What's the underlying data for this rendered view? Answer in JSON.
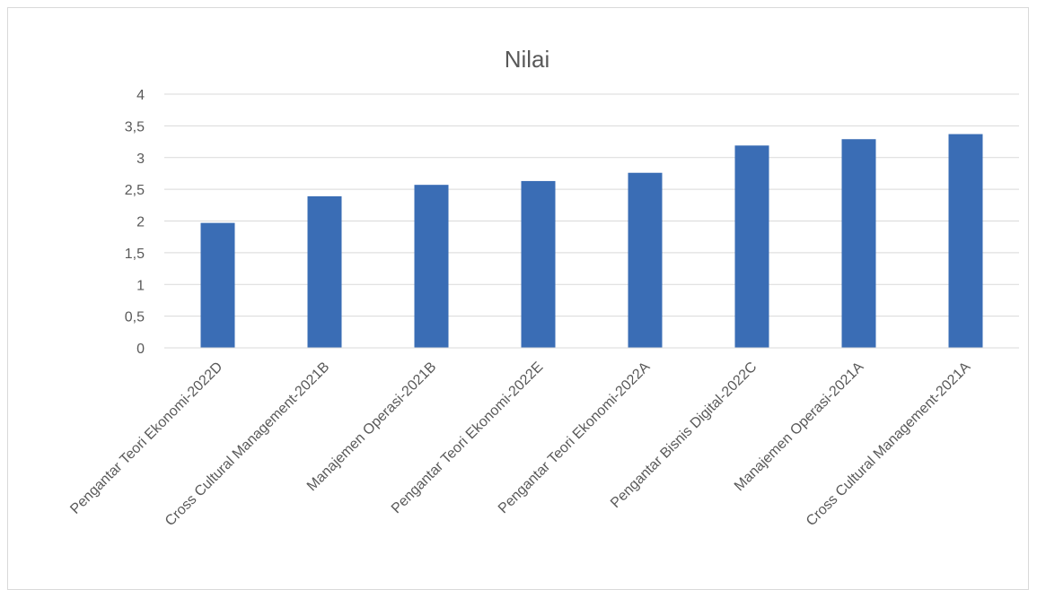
{
  "chart_data": {
    "type": "bar",
    "title": "Nilai",
    "xlabel": "",
    "ylabel": "",
    "categories": [
      "Pengantar Teori Ekonomi-2022D",
      "Cross Cultural Management-2021B",
      "Manajemen Operasi-2021B",
      "Pengantar Teori Ekonomi-2022E",
      "Pengantar Teori Ekonomi-2022A",
      "Pengantar Bisnis Digital-2022C",
      "Manajemen Operasi-2021A",
      "Cross Cultural Management-2021A"
    ],
    "values": [
      1.97,
      2.39,
      2.57,
      2.63,
      2.76,
      3.19,
      3.29,
      3.37
    ],
    "ylim": [
      0,
      4
    ],
    "yticks": [
      "0",
      "0,5",
      "1",
      "1,5",
      "2",
      "2,5",
      "3",
      "3,5",
      "4"
    ],
    "grid": true,
    "legend": "none",
    "colors": {
      "bar": "#3a6db5",
      "grid": "#d9d9d9",
      "text": "#595959"
    }
  }
}
